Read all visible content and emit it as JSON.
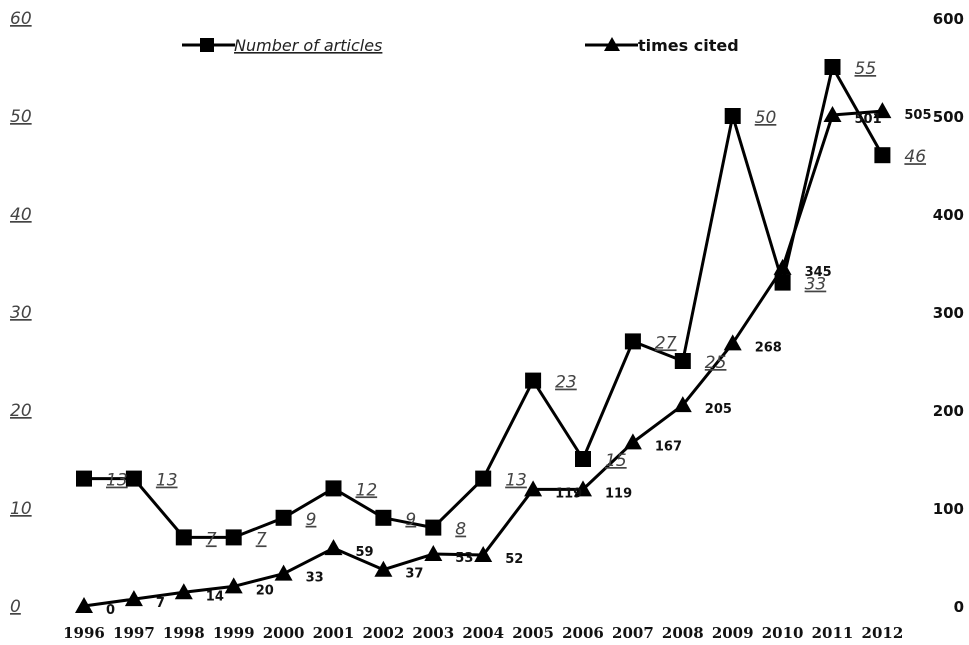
{
  "chart_data": {
    "type": "line",
    "categories": [
      "1996",
      "1997",
      "1998",
      "1999",
      "2000",
      "2001",
      "2002",
      "2003",
      "2004",
      "2005",
      "2006",
      "2007",
      "2008",
      "2009",
      "2010",
      "2011",
      "2012"
    ],
    "series": [
      {
        "name": "Number of articles",
        "axis": "left",
        "marker": "square",
        "values": [
          13,
          13,
          7,
          7,
          9,
          12,
          9,
          8,
          13,
          23,
          15,
          27,
          25,
          50,
          33,
          55,
          46
        ],
        "labels": [
          "13",
          "13",
          "7",
          "7",
          "9",
          "12",
          "9",
          "8",
          "13",
          "23",
          "15",
          "27",
          "25",
          "50",
          "33",
          "55",
          "46"
        ]
      },
      {
        "name": "times cited",
        "axis": "right",
        "marker": "triangle",
        "values": [
          0,
          7,
          14,
          20,
          33,
          59,
          37,
          53,
          52,
          119,
          119,
          167,
          205,
          268,
          345,
          501,
          505
        ],
        "labels": [
          "0",
          "7",
          "14",
          "20",
          "33",
          "59",
          "37",
          "53",
          "52",
          "119",
          "119",
          "167",
          "205",
          "268",
          "345",
          "501",
          "505"
        ]
      }
    ],
    "y_left": {
      "ylim": [
        0,
        60
      ],
      "ticks": [
        "0",
        "10",
        "20",
        "30",
        "40",
        "50",
        "60"
      ]
    },
    "y_right": {
      "ylim": [
        0,
        600
      ],
      "ticks": [
        "0",
        "100",
        "200",
        "300",
        "400",
        "500",
        "600"
      ]
    },
    "grid": false,
    "legend_position": "top",
    "colors": {
      "line": "#000000",
      "text": "#222222"
    }
  }
}
